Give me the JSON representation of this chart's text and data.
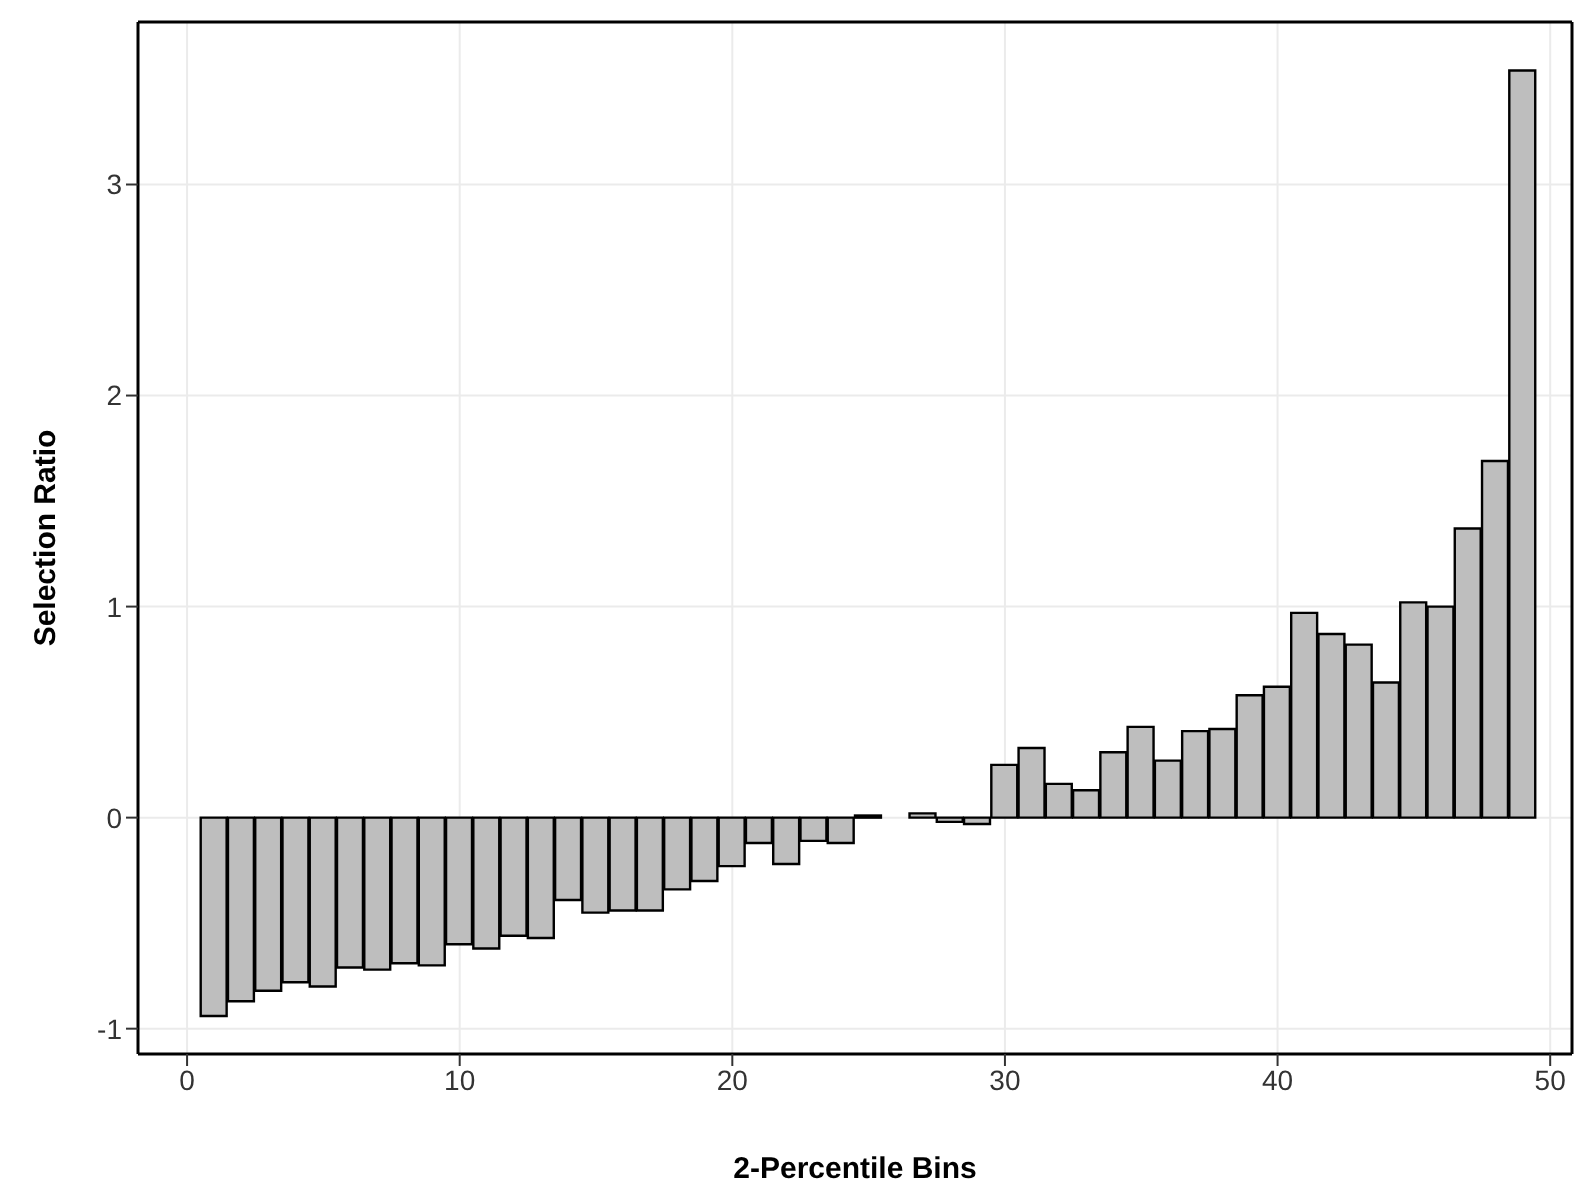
{
  "chart_data": {
    "type": "bar",
    "xlabel": "2-Percentile Bins",
    "ylabel": "Selection Ratio",
    "x": [
      1,
      2,
      3,
      4,
      5,
      6,
      7,
      8,
      9,
      10,
      11,
      12,
      13,
      14,
      15,
      16,
      17,
      18,
      19,
      20,
      21,
      22,
      23,
      24,
      25,
      26,
      27,
      28,
      29,
      30,
      31,
      32,
      33,
      34,
      35,
      36,
      37,
      38,
      39,
      40,
      41,
      42,
      43,
      44,
      45,
      46,
      47,
      48,
      49
    ],
    "values": [
      -0.94,
      -0.87,
      -0.82,
      -0.78,
      -0.8,
      -0.71,
      -0.72,
      -0.69,
      -0.7,
      -0.6,
      -0.62,
      -0.56,
      -0.57,
      -0.39,
      -0.45,
      -0.44,
      -0.44,
      -0.34,
      -0.3,
      -0.23,
      -0.12,
      -0.22,
      -0.11,
      -0.12,
      0.01,
      0,
      0.02,
      -0.02,
      -0.03,
      0.25,
      0.33,
      0.16,
      0.13,
      0.31,
      0.43,
      0.27,
      0.41,
      0.42,
      0.58,
      0.62,
      0.97,
      0.87,
      0.82,
      0.64,
      1.02,
      1.0,
      1.37,
      1.69,
      3.54
    ],
    "color": "#bebebe",
    "xlim": [
      -1.8,
      50.8
    ],
    "xticks": [
      0,
      10,
      20,
      30,
      40,
      50
    ],
    "ylim": [
      -1.12,
      3.77
    ],
    "yticks": [
      -1,
      0,
      1,
      2,
      3
    ],
    "grid": true
  }
}
